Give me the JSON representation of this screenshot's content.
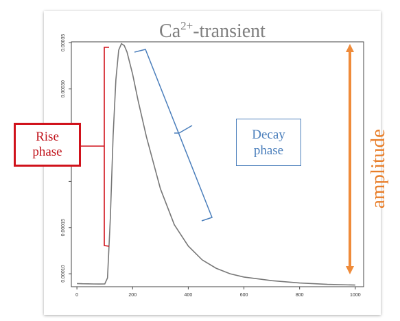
{
  "title": {
    "main": "Ca",
    "sup": "2+",
    "suffix": "-transient"
  },
  "annotations": {
    "rise_line1": "Rise",
    "rise_line2": "phase",
    "decay_line1": "Decay",
    "decay_line2": "phase",
    "amplitude": "amplitude"
  },
  "colors": {
    "curve": "#777777",
    "rise": "#d0121b",
    "decay": "#4a7ebb",
    "amplitude": "#ef8b3a"
  },
  "chart_data": {
    "type": "line",
    "title": "Ca2+-transient",
    "xlabel": "",
    "ylabel": "",
    "xlim": [
      -20,
      1030
    ],
    "ylim": [
      8.6e-05,
      0.000351
    ],
    "x_ticks": [
      0,
      200,
      400,
      600,
      800,
      1000
    ],
    "x_tick_labels": [
      "0",
      "200",
      "400",
      "600",
      "800",
      "1000"
    ],
    "y_ticks": [
      0.0001,
      0.00015,
      0.0002,
      0.00025,
      0.0003,
      0.00035
    ],
    "y_tick_labels": [
      "0.00010",
      "0.00015",
      "",
      "",
      "0.00030",
      "0.00035"
    ],
    "grid": false,
    "series": [
      {
        "x": [
          0,
          20,
          40,
          60,
          80,
          100,
          110,
          120,
          130,
          140,
          150,
          160,
          170,
          180,
          200,
          220,
          250,
          300,
          350,
          400,
          450,
          500,
          550,
          600,
          700,
          800,
          900,
          1000
        ],
        "y": [
          8.94e-05,
          8.92e-05,
          8.91e-05,
          8.9e-05,
          8.89e-05,
          8.9e-05,
          9.55e-05,
          0.00016,
          0.00025,
          0.00031,
          0.000342,
          0.000349,
          0.000347,
          0.00034,
          0.000316,
          0.000287,
          0.000248,
          0.000192,
          0.000153,
          0.00013,
          0.000115,
          0.000106,
          0.0001,
          9.65e-05,
          9.25e-05,
          9e-05,
          8.85e-05,
          8.78e-05
        ]
      }
    ]
  }
}
